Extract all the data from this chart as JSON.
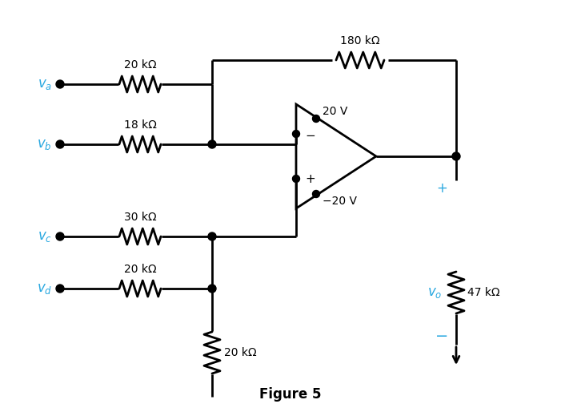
{
  "title": "Figure 5",
  "title_fontsize": 12,
  "bg_color": "#ffffff",
  "line_color": "#000000",
  "label_color": "#29a8e0",
  "R1_label": "20 kΩ",
  "R2_label": "18 kΩ",
  "R3_label": "30 kΩ",
  "R4_label": "20 kΩ",
  "R5_label": "180 kΩ",
  "R6_label": "20 kΩ",
  "R7_label": "47 kΩ",
  "V_pos": "20 V",
  "V_neg": "−20 V",
  "plus_sym": "+",
  "minus_sym": "−",
  "plus_oa": "+",
  "minus_oa": "−"
}
